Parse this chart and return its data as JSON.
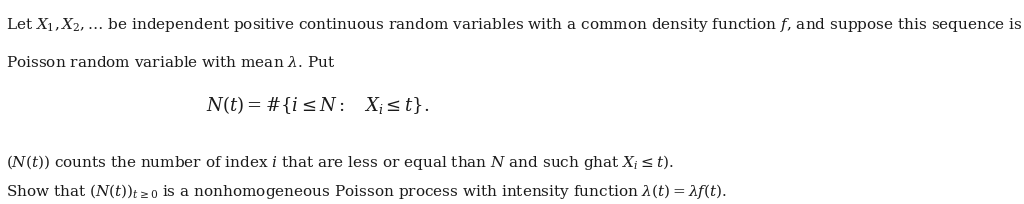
{
  "figsize": [
    10.24,
    2.04
  ],
  "dpi": 100,
  "bg_color": "#ffffff",
  "line1": "Let $X_1, X_2, \\ldots$ be independent positive continuous random variables with a common density function $f$, and suppose this sequence is independent of $N$, a",
  "line2": "Poisson random variable with mean $\\lambda$. Put",
  "formula": "$N(t) = \\#\\left\\{i \\leq N : \\quad X_i \\leq t\\right\\}.$",
  "line3": "$(N(t))$ counts the number of index $i$ that are less or equal than $N$ and such ghat $X_i \\leq t)$.",
  "line4": "Show that $(N(t))_{t \\geq 0}$ is a nonhomogeneous Poisson process with intensity function $\\lambda(t) = \\lambda f(t)$.",
  "font_size_main": 11,
  "font_size_formula": 13,
  "text_color": "#1a1a1a"
}
